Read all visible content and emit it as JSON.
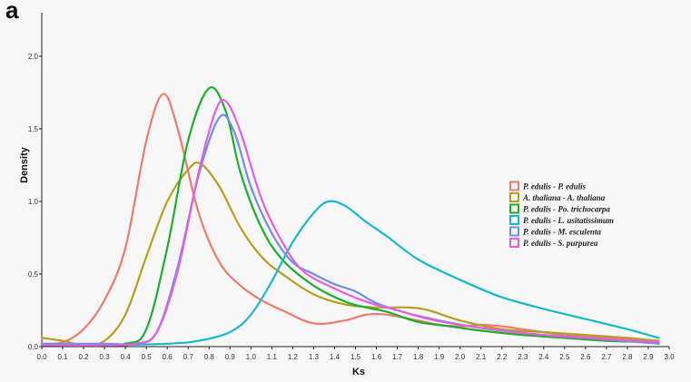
{
  "panel_label": "a",
  "chart_data": {
    "type": "line",
    "title": "",
    "xlabel": "Ks",
    "ylabel": "Density",
    "xlim": [
      0.0,
      3.0
    ],
    "ylim": [
      0.0,
      2.3
    ],
    "x_ticks": [
      "0.0",
      "0.1",
      "0.2",
      "0.3",
      "0.4",
      "0.5",
      "0.6",
      "0.7",
      "0.8",
      "0.9",
      "1.0",
      "1.1",
      "1.2",
      "1.3",
      "1.4",
      "1.5",
      "1.6",
      "1.7",
      "1.8",
      "1.9",
      "2.0",
      "2.1",
      "2.2",
      "2.3",
      "2.4",
      "2.5",
      "2.6",
      "2.7",
      "2.8",
      "2.9",
      "3.0"
    ],
    "y_ticks": [
      "0.0",
      "0.5",
      "1.0",
      "1.5",
      "2.0"
    ],
    "grid": false,
    "legend_position": "right",
    "series": [
      {
        "name": "P. edulis - P. edulis",
        "color": "#ee7b70",
        "points": [
          [
            0.0,
            0.02
          ],
          [
            0.1,
            0.03
          ],
          [
            0.2,
            0.12
          ],
          [
            0.3,
            0.32
          ],
          [
            0.4,
            0.68
          ],
          [
            0.5,
            1.42
          ],
          [
            0.58,
            1.74
          ],
          [
            0.65,
            1.5
          ],
          [
            0.75,
            0.92
          ],
          [
            0.85,
            0.58
          ],
          [
            0.95,
            0.42
          ],
          [
            1.05,
            0.32
          ],
          [
            1.15,
            0.25
          ],
          [
            1.3,
            0.16
          ],
          [
            1.45,
            0.18
          ],
          [
            1.55,
            0.22
          ],
          [
            1.65,
            0.22
          ],
          [
            1.8,
            0.18
          ],
          [
            1.9,
            0.15
          ],
          [
            2.0,
            0.14
          ],
          [
            2.1,
            0.15
          ],
          [
            2.2,
            0.14
          ],
          [
            2.3,
            0.12
          ],
          [
            2.5,
            0.08
          ],
          [
            2.7,
            0.06
          ],
          [
            2.95,
            0.03
          ]
        ]
      },
      {
        "name": "A. thaliana - A. thaliana",
        "color": "#b3a020",
        "points": [
          [
            0.0,
            0.06
          ],
          [
            0.1,
            0.04
          ],
          [
            0.2,
            0.01
          ],
          [
            0.3,
            0.04
          ],
          [
            0.4,
            0.22
          ],
          [
            0.5,
            0.62
          ],
          [
            0.6,
            1.0
          ],
          [
            0.7,
            1.22
          ],
          [
            0.76,
            1.26
          ],
          [
            0.85,
            1.1
          ],
          [
            0.95,
            0.82
          ],
          [
            1.05,
            0.62
          ],
          [
            1.15,
            0.5
          ],
          [
            1.3,
            0.36
          ],
          [
            1.45,
            0.29
          ],
          [
            1.6,
            0.27
          ],
          [
            1.75,
            0.27
          ],
          [
            1.85,
            0.25
          ],
          [
            2.0,
            0.18
          ],
          [
            2.2,
            0.12
          ],
          [
            2.4,
            0.1
          ],
          [
            2.6,
            0.08
          ],
          [
            2.8,
            0.06
          ],
          [
            2.95,
            0.04
          ]
        ]
      },
      {
        "name": "P. edulis - Po. trichocarpa",
        "color": "#1fad2e",
        "points": [
          [
            0.0,
            0.01
          ],
          [
            0.2,
            0.01
          ],
          [
            0.4,
            0.02
          ],
          [
            0.5,
            0.12
          ],
          [
            0.6,
            0.68
          ],
          [
            0.7,
            1.42
          ],
          [
            0.8,
            1.78
          ],
          [
            0.88,
            1.62
          ],
          [
            0.95,
            1.2
          ],
          [
            1.05,
            0.82
          ],
          [
            1.15,
            0.6
          ],
          [
            1.3,
            0.42
          ],
          [
            1.45,
            0.31
          ],
          [
            1.55,
            0.27
          ],
          [
            1.65,
            0.24
          ],
          [
            1.8,
            0.17
          ],
          [
            1.95,
            0.14
          ],
          [
            2.1,
            0.11
          ],
          [
            2.3,
            0.08
          ],
          [
            2.5,
            0.06
          ],
          [
            2.7,
            0.04
          ],
          [
            2.95,
            0.03
          ]
        ]
      },
      {
        "name": "P. edulis - L. usitatissimum",
        "color": "#17b9c9",
        "points": [
          [
            0.0,
            0.01
          ],
          [
            0.3,
            0.01
          ],
          [
            0.6,
            0.02
          ],
          [
            0.75,
            0.04
          ],
          [
            0.9,
            0.1
          ],
          [
            1.0,
            0.22
          ],
          [
            1.1,
            0.45
          ],
          [
            1.2,
            0.72
          ],
          [
            1.3,
            0.92
          ],
          [
            1.37,
            1.0
          ],
          [
            1.45,
            0.97
          ],
          [
            1.55,
            0.86
          ],
          [
            1.65,
            0.76
          ],
          [
            1.8,
            0.6
          ],
          [
            2.0,
            0.46
          ],
          [
            2.2,
            0.34
          ],
          [
            2.4,
            0.26
          ],
          [
            2.6,
            0.19
          ],
          [
            2.8,
            0.12
          ],
          [
            2.95,
            0.06
          ]
        ]
      },
      {
        "name": "P. edulis - M. esculenta",
        "color": "#6f8fe8",
        "points": [
          [
            0.0,
            0.02
          ],
          [
            0.3,
            0.02
          ],
          [
            0.45,
            0.02
          ],
          [
            0.55,
            0.1
          ],
          [
            0.65,
            0.55
          ],
          [
            0.75,
            1.18
          ],
          [
            0.85,
            1.58
          ],
          [
            0.92,
            1.48
          ],
          [
            1.0,
            1.1
          ],
          [
            1.1,
            0.78
          ],
          [
            1.2,
            0.58
          ],
          [
            1.3,
            0.5
          ],
          [
            1.4,
            0.43
          ],
          [
            1.5,
            0.38
          ],
          [
            1.6,
            0.3
          ],
          [
            1.75,
            0.23
          ],
          [
            1.9,
            0.18
          ],
          [
            2.05,
            0.14
          ],
          [
            2.2,
            0.11
          ],
          [
            2.4,
            0.08
          ],
          [
            2.6,
            0.06
          ],
          [
            2.95,
            0.02
          ]
        ]
      },
      {
        "name": "P. edulis - S. purpurea",
        "color": "#e45fe0",
        "points": [
          [
            0.0,
            0.01
          ],
          [
            0.3,
            0.01
          ],
          [
            0.45,
            0.02
          ],
          [
            0.55,
            0.1
          ],
          [
            0.65,
            0.52
          ],
          [
            0.75,
            1.2
          ],
          [
            0.83,
            1.62
          ],
          [
            0.88,
            1.69
          ],
          [
            0.95,
            1.48
          ],
          [
            1.05,
            1.02
          ],
          [
            1.15,
            0.72
          ],
          [
            1.25,
            0.52
          ],
          [
            1.4,
            0.4
          ],
          [
            1.55,
            0.31
          ],
          [
            1.7,
            0.25
          ],
          [
            1.85,
            0.19
          ],
          [
            2.0,
            0.15
          ],
          [
            2.2,
            0.11
          ],
          [
            2.4,
            0.08
          ],
          [
            2.6,
            0.06
          ],
          [
            2.95,
            0.03
          ]
        ]
      }
    ]
  }
}
